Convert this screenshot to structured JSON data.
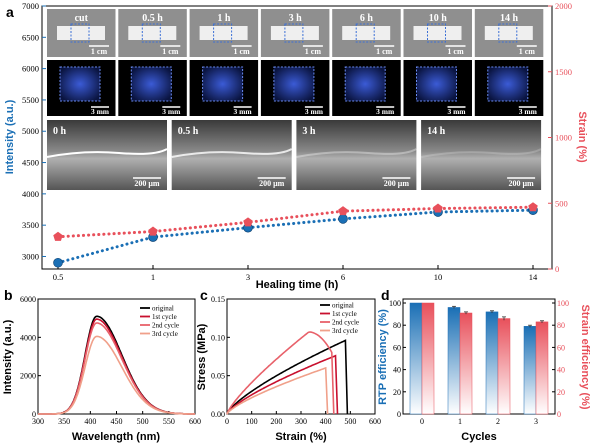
{
  "panel_labels": {
    "a": "a",
    "b": "b",
    "c": "c",
    "d": "d"
  },
  "photos": {
    "top_labels": [
      "cut",
      "0.5 h",
      "1 h",
      "3 h",
      "6 h",
      "10 h",
      "14 h"
    ],
    "top_scale": "1 cm",
    "mid_scale": "3 mm",
    "micro_labels": [
      "0 h",
      "0.5 h",
      "3 h",
      "14 h"
    ],
    "micro_scale": "200 μm"
  },
  "colors": {
    "blue": "#1a6fb5",
    "red": "#e8505b",
    "black": "#000000",
    "dark_red": "#c8102e",
    "pink": "#e8616a",
    "salmon": "#f0a08a"
  },
  "chart_data": [
    {
      "type": "scatter",
      "panel": "a",
      "xlabel": "Healing time (h)",
      "ylabel_left": "Intensity (a.u.)",
      "ylabel_right": "Strain (%)",
      "categories": [
        "0.5",
        "1",
        "3",
        "6",
        "10",
        "14"
      ],
      "ylim_left": [
        2800,
        7000
      ],
      "ylim_right": [
        0,
        2000
      ],
      "yticks_left": [
        "3000",
        "3500",
        "4000",
        "4500",
        "5000",
        "5500",
        "6000",
        "6500",
        "7000"
      ],
      "yticks_right": [
        "0",
        "500",
        "1000",
        "1500",
        "2000"
      ],
      "series": [
        {
          "axis": "left",
          "color": "#1a6fb5",
          "values": [
            2900,
            3310,
            3460,
            3600,
            3710,
            3740
          ]
        },
        {
          "axis": "right",
          "color": "#e8505b",
          "values": [
            245,
            285,
            355,
            440,
            460,
            470
          ]
        }
      ]
    },
    {
      "type": "line",
      "panel": "b",
      "xlabel": "Wavelength (nm)",
      "ylabel": "Intensity (a.u.)",
      "xlim": [
        300,
        600
      ],
      "ylim": [
        0,
        6000
      ],
      "xticks": [
        "300",
        "350",
        "400",
        "450",
        "500",
        "550",
        "600"
      ],
      "yticks": [
        "0",
        "2000",
        "4000",
        "6000"
      ],
      "series": [
        {
          "name": "original",
          "color": "#000000",
          "peak": 5100
        },
        {
          "name": "1st cycle",
          "color": "#c8102e",
          "peak": 4950
        },
        {
          "name": "2nd cycle",
          "color": "#e8616a",
          "peak": 4750
        },
        {
          "name": "3rd cycle",
          "color": "#f0a08a",
          "peak": 4050
        }
      ],
      "peak_x": 412
    },
    {
      "type": "line",
      "panel": "c",
      "xlabel": "Strain (%)",
      "ylabel": "Stress (MPa)",
      "xlim": [
        0,
        600
      ],
      "ylim": [
        0,
        0.15
      ],
      "xticks": [
        "0",
        "100",
        "200",
        "300",
        "400",
        "500",
        "600"
      ],
      "yticks": [
        "0.00",
        "0.05",
        "0.10",
        "0.15"
      ],
      "series": [
        {
          "name": "original",
          "color": "#000000",
          "break_strain": 480,
          "max_stress": 0.096
        },
        {
          "name": "1st cycle",
          "color": "#c8102e",
          "break_strain": 440,
          "max_stress": 0.076
        },
        {
          "name": "2nd cycle",
          "color": "#e8616a",
          "break_strain": 425,
          "max_stress": 0.107
        },
        {
          "name": "3rd cycle",
          "color": "#f0a08a",
          "break_strain": 400,
          "max_stress": 0.06
        }
      ]
    },
    {
      "type": "bar",
      "panel": "d",
      "xlabel": "Cycles",
      "ylabel_left": "RTP efficiency (%)",
      "ylabel_right": "Strain efficiency (%)",
      "categories": [
        "0",
        "1",
        "2",
        "3"
      ],
      "ylim": [
        0,
        100
      ],
      "yticks": [
        "0",
        "20",
        "40",
        "60",
        "80",
        "100"
      ],
      "series": [
        {
          "name": "RTP efficiency",
          "color": "#1a6fb5",
          "values": [
            100,
            96,
            92,
            79
          ],
          "errors": [
            0,
            1,
            1,
            1
          ]
        },
        {
          "name": "Strain efficiency",
          "color": "#e8505b",
          "values": [
            100,
            91,
            86,
            83
          ],
          "errors": [
            0,
            1,
            1.5,
            1
          ]
        }
      ]
    }
  ]
}
